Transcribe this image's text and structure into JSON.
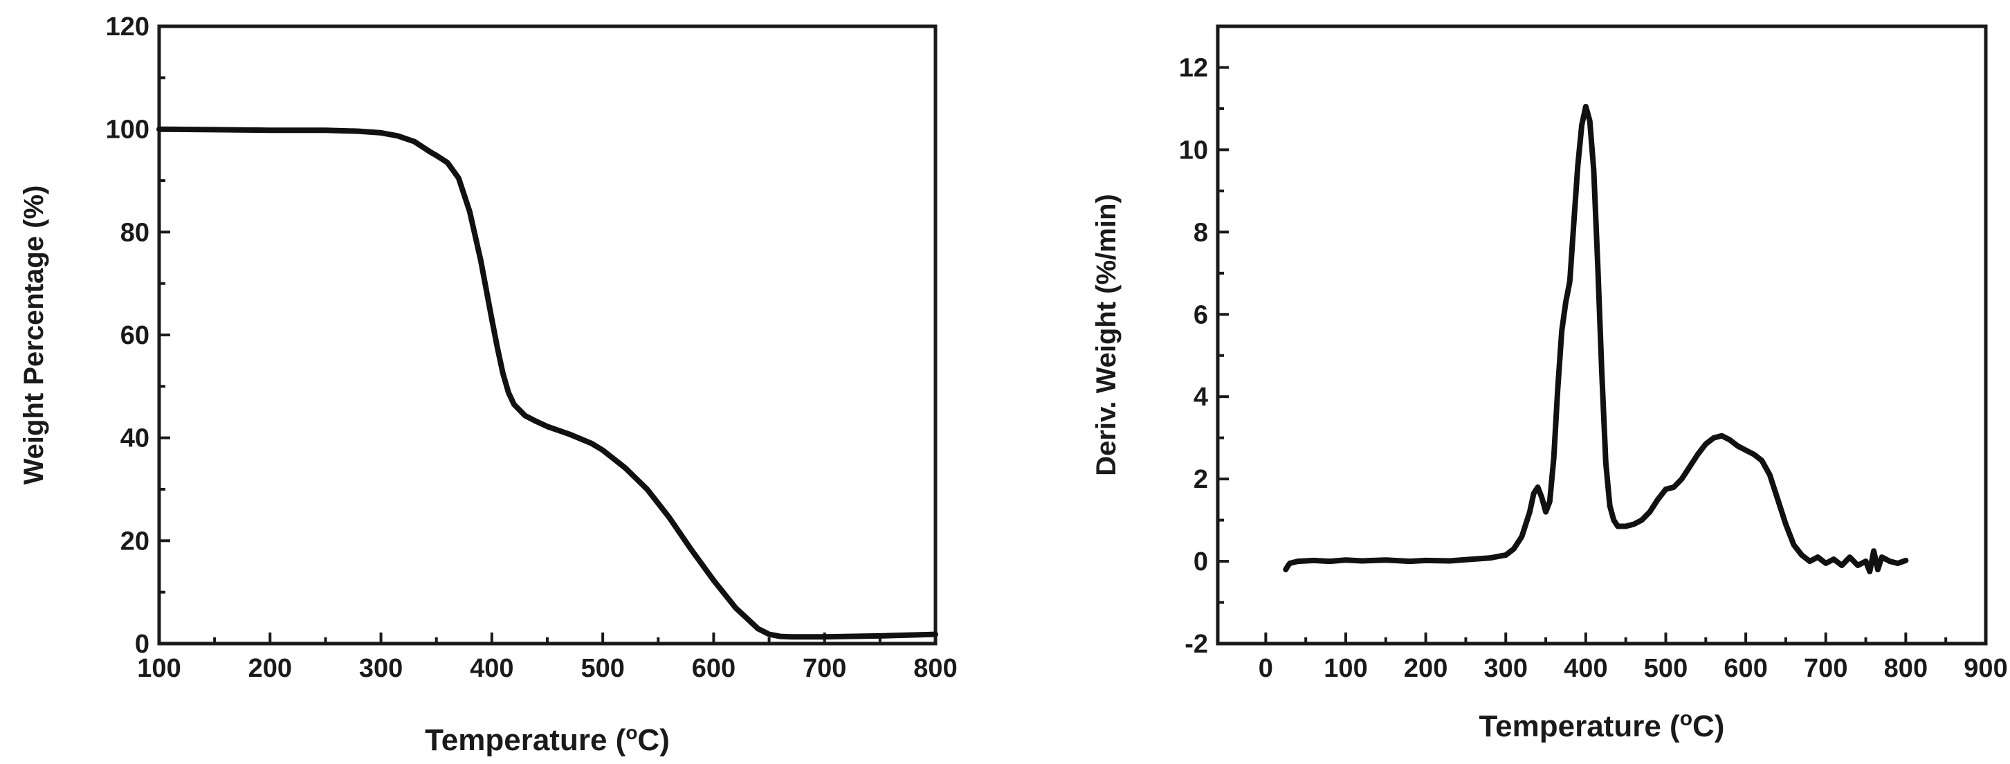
{
  "chart_data": [
    {
      "type": "line",
      "id": "tga",
      "title": "",
      "xlabel": "Temperature",
      "xlabel_sup": "o",
      "xlabel_unit_prefix": "(",
      "xlabel_unit_suffix": "C)",
      "ylabel": "Weight Percentage (%)",
      "xlim": [
        100,
        800
      ],
      "ylim": [
        0,
        120
      ],
      "xticks": [
        100,
        200,
        300,
        400,
        500,
        600,
        700,
        800
      ],
      "yticks": [
        0,
        20,
        40,
        60,
        80,
        100,
        120
      ],
      "grid": false,
      "series": [
        {
          "name": "Weight Percentage",
          "x": [
            100,
            150,
            200,
            250,
            280,
            300,
            315,
            330,
            340,
            345,
            350,
            360,
            370,
            380,
            390,
            400,
            405,
            410,
            415,
            420,
            430,
            440,
            450,
            470,
            490,
            500,
            520,
            540,
            560,
            580,
            600,
            620,
            640,
            650,
            660,
            670,
            680,
            700,
            750,
            800
          ],
          "y": [
            100,
            99.9,
            99.8,
            99.8,
            99.6,
            99.3,
            98.7,
            97.6,
            96.2,
            95.5,
            94.9,
            93.5,
            90.5,
            84,
            74.5,
            63,
            57.5,
            52.5,
            48.8,
            46.5,
            44.3,
            43.2,
            42.2,
            40.7,
            38.9,
            37.6,
            34.2,
            30,
            24.5,
            18.2,
            12.3,
            6.9,
            2.9,
            1.8,
            1.4,
            1.3,
            1.3,
            1.3,
            1.5,
            1.8
          ]
        }
      ]
    },
    {
      "type": "line",
      "id": "dtg",
      "title": "",
      "xlabel": "Temperature",
      "xlabel_sup": "o",
      "xlabel_unit_prefix": "(",
      "xlabel_unit_suffix": "C)",
      "ylabel": "Deriv. Weight (%/min)",
      "xlim": [
        -60,
        900
      ],
      "ylim": [
        -2,
        13
      ],
      "xticks": [
        0,
        100,
        200,
        300,
        400,
        500,
        600,
        700,
        800,
        900
      ],
      "yticks": [
        -2,
        0,
        2,
        4,
        6,
        8,
        10,
        12
      ],
      "grid": false,
      "series": [
        {
          "name": "Deriv. Weight",
          "x": [
            25,
            28,
            30,
            40,
            60,
            80,
            100,
            120,
            150,
            180,
            200,
            230,
            250,
            280,
            300,
            310,
            320,
            330,
            335,
            340,
            345,
            350,
            355,
            360,
            365,
            370,
            375,
            380,
            385,
            390,
            395,
            400,
            405,
            410,
            415,
            420,
            425,
            430,
            435,
            440,
            450,
            460,
            470,
            480,
            490,
            500,
            510,
            520,
            530,
            540,
            550,
            560,
            570,
            580,
            590,
            600,
            610,
            620,
            630,
            640,
            650,
            660,
            670,
            680,
            690,
            700,
            710,
            720,
            730,
            740,
            750,
            755,
            760,
            765,
            770,
            780,
            790,
            800
          ],
          "y": [
            -0.2,
            -0.1,
            -0.05,
            0,
            0.02,
            0,
            0.03,
            0.01,
            0.03,
            0,
            0.02,
            0.01,
            0.04,
            0.08,
            0.15,
            0.3,
            0.6,
            1.2,
            1.65,
            1.8,
            1.55,
            1.2,
            1.45,
            2.5,
            4.2,
            5.6,
            6.3,
            6.8,
            8.2,
            9.6,
            10.6,
            11.05,
            10.7,
            9.5,
            7.2,
            4.6,
            2.4,
            1.35,
            1.0,
            0.85,
            0.85,
            0.9,
            1.0,
            1.2,
            1.5,
            1.75,
            1.8,
            2.0,
            2.3,
            2.6,
            2.85,
            3.0,
            3.05,
            2.95,
            2.8,
            2.7,
            2.6,
            2.45,
            2.1,
            1.5,
            0.9,
            0.4,
            0.15,
            0.0,
            0.1,
            -0.05,
            0.05,
            -0.1,
            0.1,
            -0.1,
            0.0,
            -0.25,
            0.25,
            -0.2,
            0.1,
            0.0,
            -0.05,
            0.02
          ]
        }
      ]
    }
  ]
}
